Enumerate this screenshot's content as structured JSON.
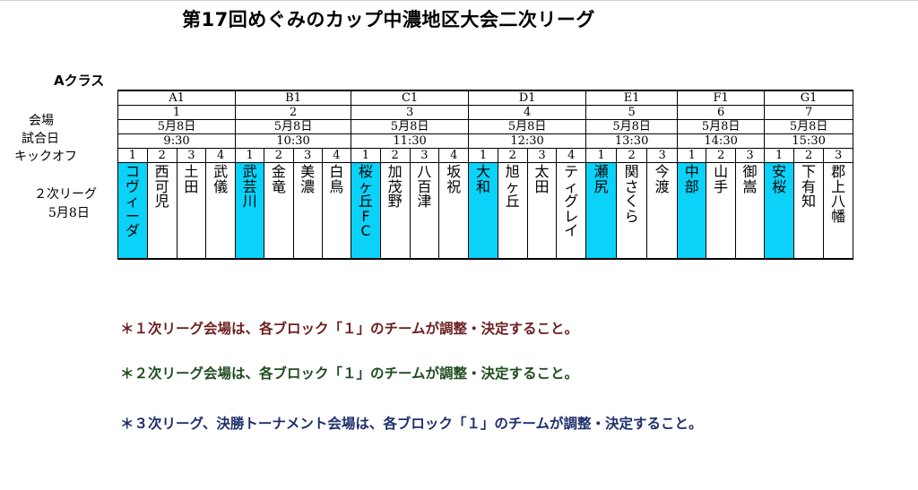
{
  "title": "第17回めぐみのカップ中濃地区大会二次リーグ",
  "class_label": "Aクラス",
  "row_labels": {
    "venue": "会場",
    "date": "試合日",
    "kickoff": "キックオフ",
    "league": "２次リーグ",
    "league_date": "5月8日"
  },
  "blocks": [
    {
      "name": "A1",
      "venue": "1",
      "date": "5月8日",
      "kickoff": "9:30",
      "teams": [
        {
          "num": "1",
          "name": "コヴィーダ",
          "highlight": true
        },
        {
          "num": "2",
          "name": "西可児",
          "highlight": false
        },
        {
          "num": "3",
          "name": "土田",
          "highlight": false
        },
        {
          "num": "4",
          "name": "武儀",
          "highlight": false
        }
      ]
    },
    {
      "name": "B1",
      "venue": "2",
      "date": "5月8日",
      "kickoff": "10:30",
      "teams": [
        {
          "num": "1",
          "name": "武芸川",
          "highlight": true
        },
        {
          "num": "2",
          "name": "金竜",
          "highlight": false
        },
        {
          "num": "3",
          "name": "美濃",
          "highlight": false
        },
        {
          "num": "4",
          "name": "白鳥",
          "highlight": false
        }
      ]
    },
    {
      "name": "C1",
      "venue": "3",
      "date": "5月8日",
      "kickoff": "11:30",
      "teams": [
        {
          "num": "1",
          "name": "桜ヶ丘FC",
          "highlight": true
        },
        {
          "num": "2",
          "name": "加茂野",
          "highlight": false
        },
        {
          "num": "3",
          "name": "八百津",
          "highlight": false
        },
        {
          "num": "4",
          "name": "坂祝",
          "highlight": false
        }
      ]
    },
    {
      "name": "D1",
      "venue": "4",
      "date": "5月8日",
      "kickoff": "12:30",
      "teams": [
        {
          "num": "1",
          "name": "大和",
          "highlight": true
        },
        {
          "num": "2",
          "name": "旭ヶ丘",
          "highlight": false
        },
        {
          "num": "3",
          "name": "太田",
          "highlight": false
        },
        {
          "num": "4",
          "name": "ティグレイ",
          "highlight": false
        }
      ]
    },
    {
      "name": "E1",
      "venue": "5",
      "date": "5月8日",
      "kickoff": "13:30",
      "teams": [
        {
          "num": "1",
          "name": "瀬尻",
          "highlight": true
        },
        {
          "num": "2",
          "name": "関さくら",
          "highlight": false
        },
        {
          "num": "3",
          "name": "今渡",
          "highlight": false
        }
      ]
    },
    {
      "name": "F1",
      "venue": "6",
      "date": "5月8日",
      "kickoff": "14:30",
      "teams": [
        {
          "num": "1",
          "name": "中部",
          "highlight": true
        },
        {
          "num": "2",
          "name": "山手",
          "highlight": false
        },
        {
          "num": "3",
          "name": "御嵩",
          "highlight": false
        }
      ]
    },
    {
      "name": "G1",
      "venue": "7",
      "date": "5月8日",
      "kickoff": "15:30",
      "teams": [
        {
          "num": "1",
          "name": "安桜",
          "highlight": true
        },
        {
          "num": "2",
          "name": "下有知",
          "highlight": false
        },
        {
          "num": "3",
          "name": "郡上八幡",
          "highlight": false
        }
      ]
    }
  ],
  "notes": [
    {
      "text": "＊１次リーグ会場は、各ブロック「１」のチームが調整・決定すること。",
      "color": "#6b1f1f"
    },
    {
      "text": "＊２次リーグ会場は、各ブロック「１」のチームが調整・決定すること。",
      "color": "#1f4d1f"
    },
    {
      "text": "＊３次リーグ、決勝トーナメント会場は、各ブロック「１」のチームが調整・決定すること。",
      "color": "#1f2f6b"
    }
  ],
  "colors": {
    "highlight": "#0ad2f8"
  }
}
